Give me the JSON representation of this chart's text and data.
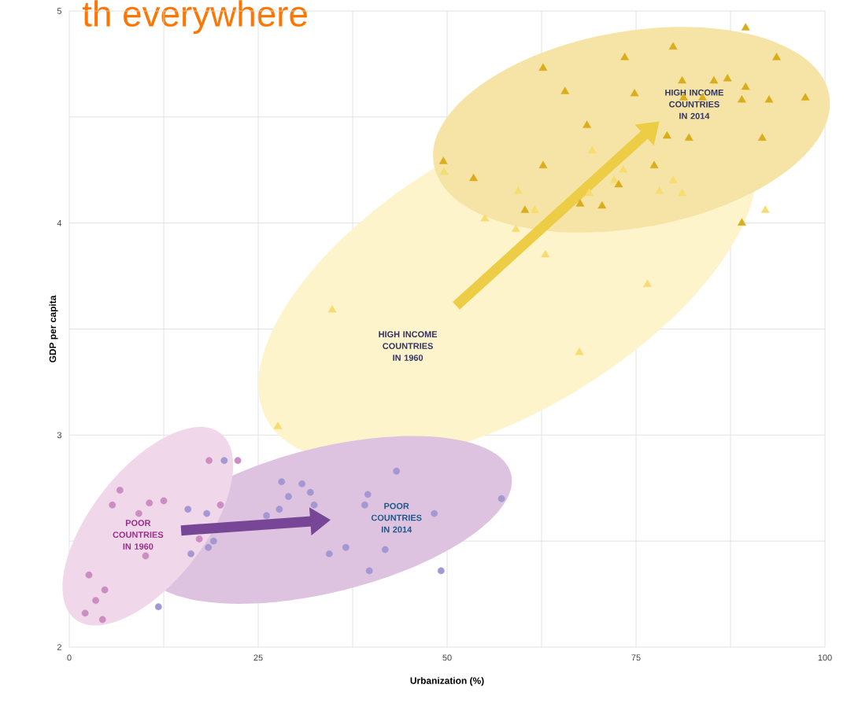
{
  "chart_data": {
    "type": "scatter",
    "title": "th everywhere",
    "xlabel": "Urbanization (%)",
    "ylabel": "GDP per capita",
    "xlim": [
      0,
      100
    ],
    "ylim": [
      2,
      5
    ],
    "xticks": [
      0,
      {
        "value": 12.5,
        "label": null
      },
      25,
      {
        "value": 37.5,
        "label": null
      },
      50,
      {
        "value": 62.5,
        "label": null
      },
      75,
      {
        "value": 87.5,
        "label": null
      },
      100
    ],
    "yticks": [
      2,
      {
        "value": 2.5,
        "label": null
      },
      3,
      {
        "value": 3.5,
        "label": null
      },
      4,
      {
        "value": 4.5,
        "label": null
      },
      5
    ],
    "grid": true,
    "series": [
      {
        "color": "#f7dc6f",
        "marker": "triangle",
        "x": [
          49.6,
          69.2,
          73.3,
          72.1,
          79.9,
          78.1,
          81.1,
          59.4,
          55.0,
          59.1,
          61.6,
          68.8,
          92.1,
          63.0,
          76.5,
          67.5,
          34.8,
          27.6
        ],
        "values": [
          4.24,
          4.34,
          4.25,
          4.2,
          4.2,
          4.15,
          4.14,
          4.15,
          4.02,
          3.97,
          4.06,
          4.14,
          4.06,
          3.85,
          3.71,
          3.39,
          3.59,
          3.04
        ]
      },
      {
        "color": "#d9ad1c",
        "marker": "triangle",
        "x": [
          89.5,
          79.9,
          73.5,
          62.7,
          93.6,
          65.6,
          74.8,
          81.1,
          85.3,
          87.1,
          89.5,
          81.3,
          83.8,
          89.0,
          92.6,
          97.4,
          68.5,
          79.1,
          82.0,
          91.7,
          49.5,
          62.7,
          53.5,
          77.4,
          72.7,
          60.3,
          70.5,
          67.6,
          89.0
        ],
        "values": [
          4.92,
          4.83,
          4.78,
          4.73,
          4.78,
          4.62,
          4.61,
          4.67,
          4.67,
          4.68,
          4.64,
          4.59,
          4.59,
          4.58,
          4.58,
          4.59,
          4.46,
          4.41,
          4.4,
          4.4,
          4.29,
          4.27,
          4.21,
          4.27,
          4.18,
          4.06,
          4.08,
          4.09,
          4.0
        ]
      },
      {
        "color": "#cc8dc3",
        "marker": "circle",
        "x": [
          18.5,
          22.3,
          6.7,
          5.7,
          10.6,
          12.5,
          9.2,
          20.0,
          17.2,
          10.1,
          2.6,
          4.7,
          3.5,
          2.1,
          4.4
        ],
        "values": [
          2.88,
          2.88,
          2.74,
          2.67,
          2.68,
          2.69,
          2.63,
          2.67,
          2.51,
          2.43,
          2.34,
          2.27,
          2.22,
          2.16,
          2.13
        ]
      },
      {
        "color": "#a598d2",
        "marker": "circle",
        "x": [
          20.5,
          15.7,
          18.2,
          19.1,
          18.4,
          16.1,
          11.8,
          28.1,
          30.8,
          31.9,
          29.0,
          27.8,
          26.1,
          32.4,
          43.3,
          39.5,
          39.1,
          57.2,
          48.3,
          36.6,
          34.4,
          41.8,
          39.7,
          49.2
        ],
        "values": [
          2.88,
          2.65,
          2.63,
          2.5,
          2.47,
          2.44,
          2.19,
          2.78,
          2.77,
          2.73,
          2.71,
          2.65,
          2.62,
          2.67,
          2.83,
          2.72,
          2.67,
          2.7,
          2.63,
          2.47,
          2.44,
          2.46,
          2.36,
          2.36
        ]
      }
    ],
    "annotations": [
      "HIGH INCOME COUNTRIES IN 1960",
      "HIGH INCOME COUNTRIES IN 2014",
      "POOR COUNTRIES IN 1960",
      "POOR COUNTRIES IN 2014"
    ]
  }
}
